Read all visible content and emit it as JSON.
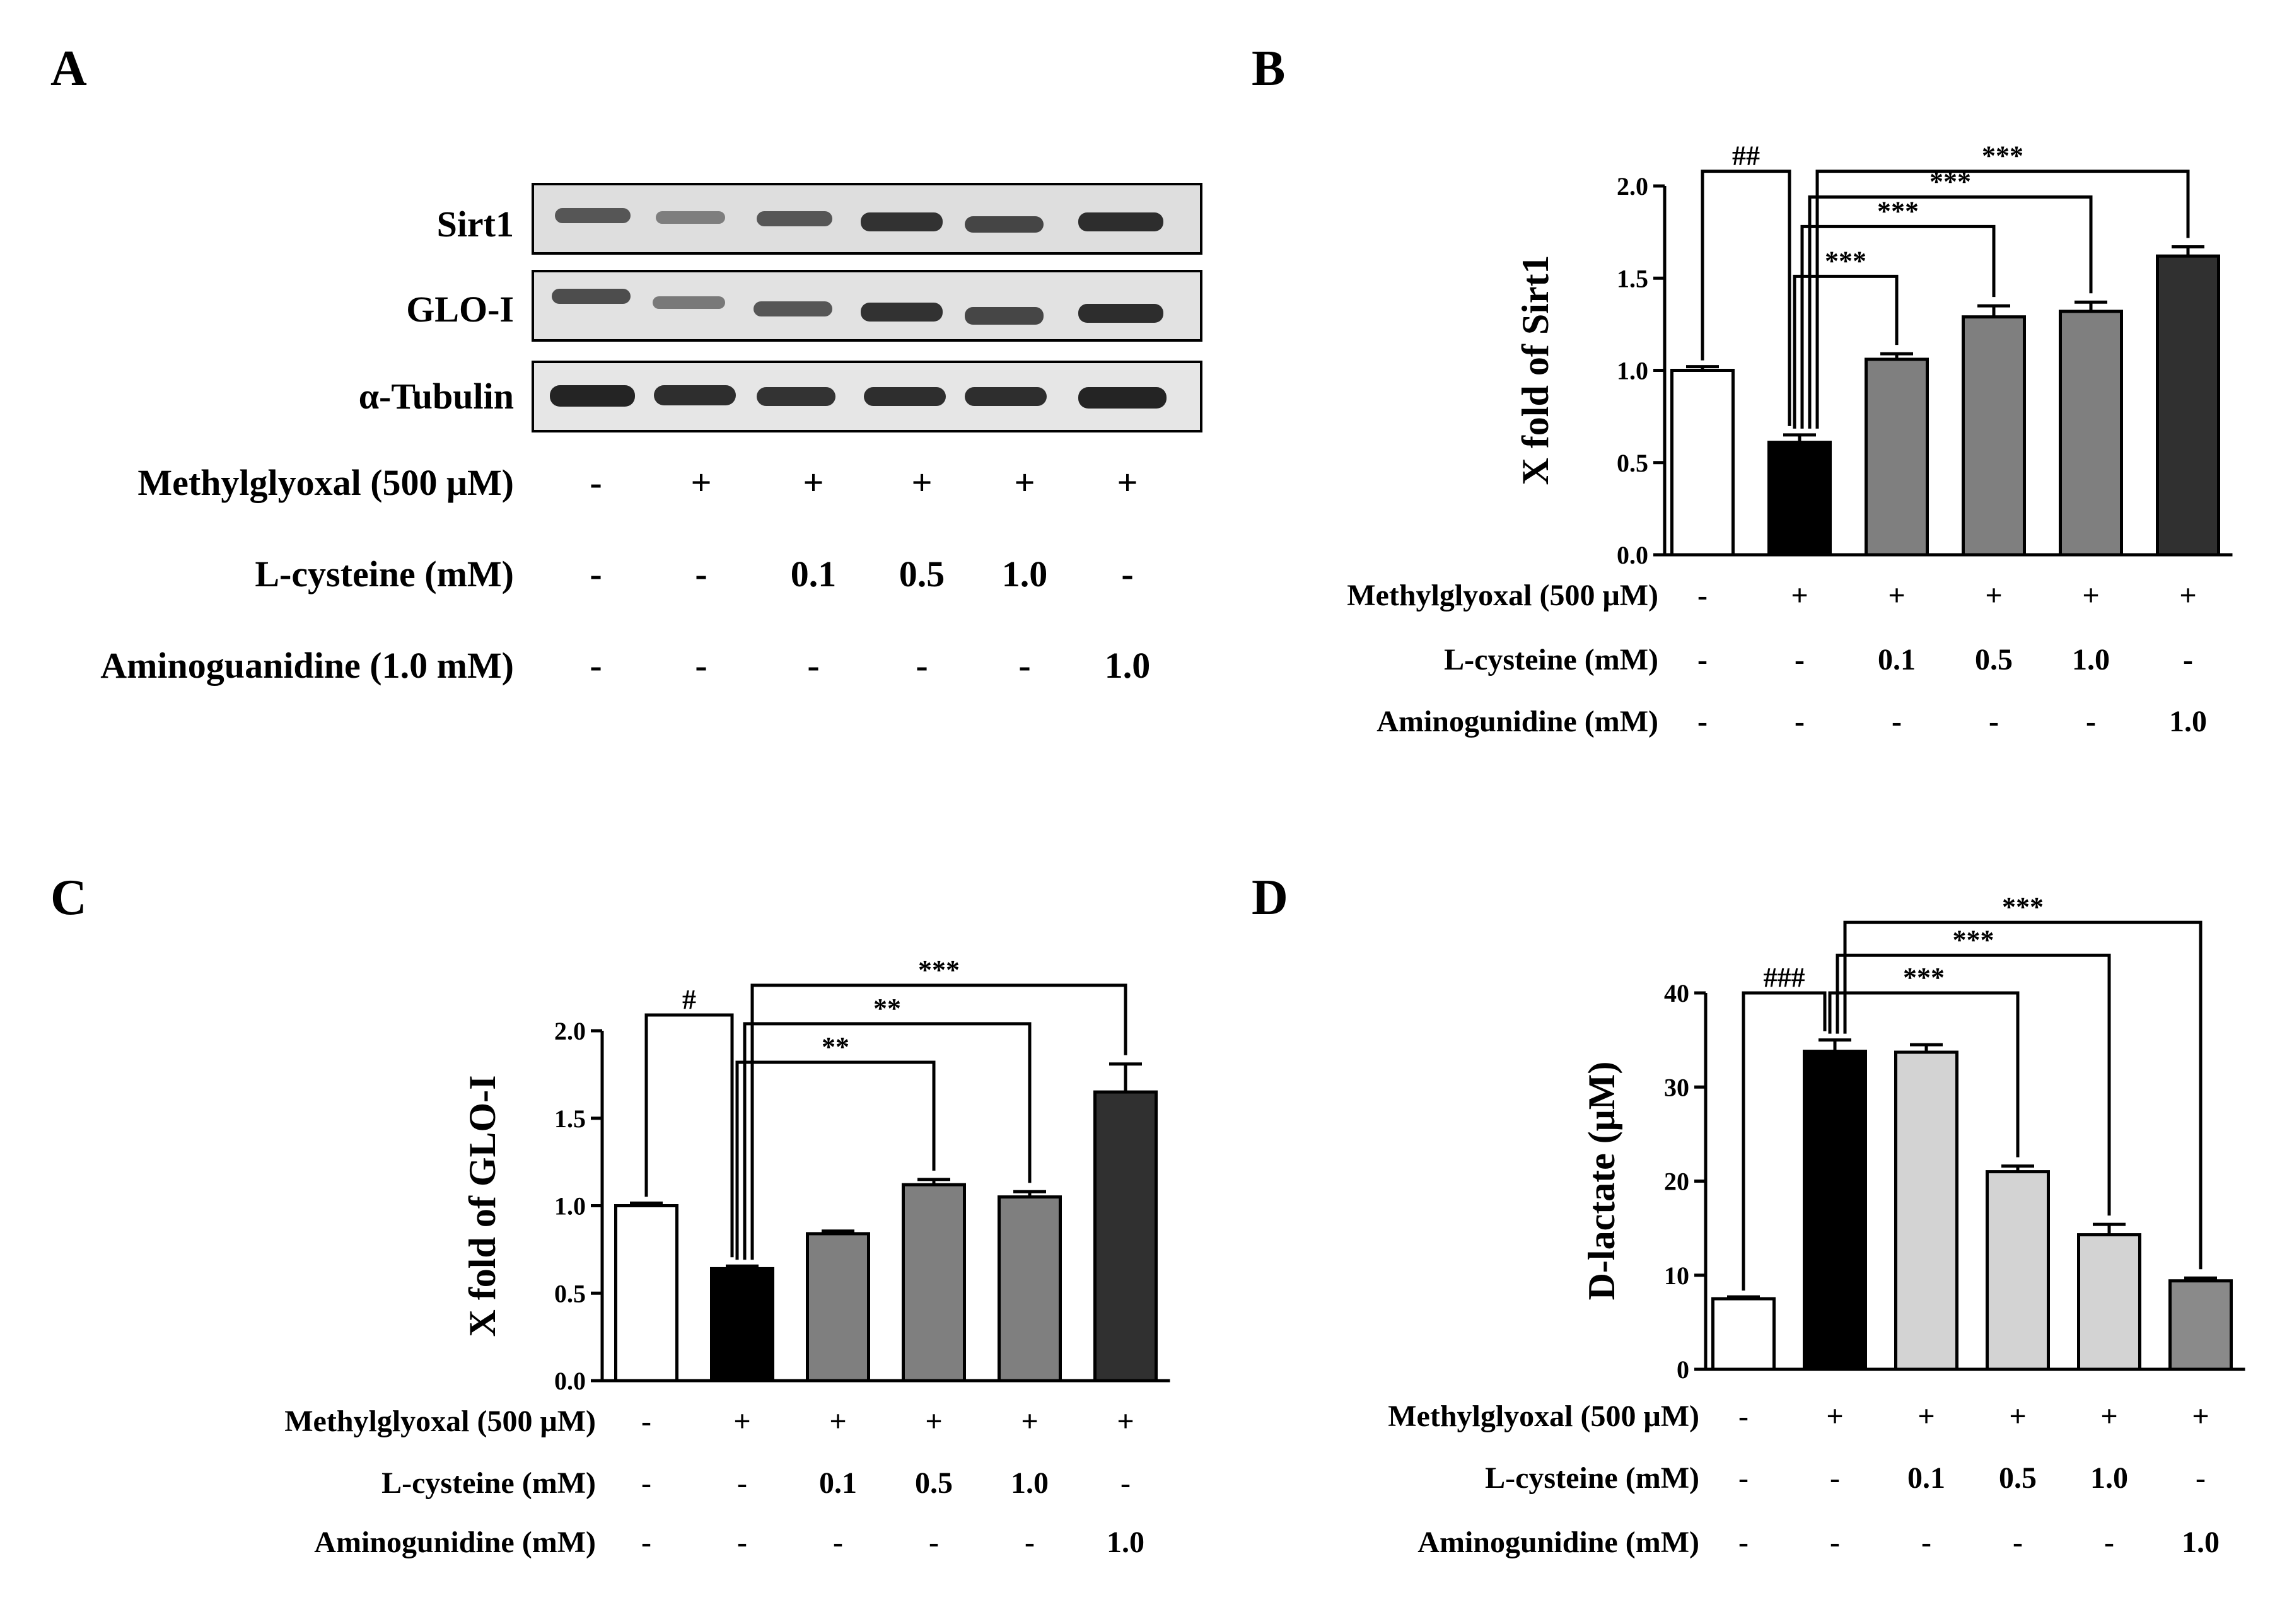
{
  "panel_labels": [
    "A",
    "B",
    "C",
    "D"
  ],
  "blot": {
    "bands": [
      "Sirt1",
      "GLO-I",
      "α-Tubulin"
    ],
    "rows": [
      {
        "label": "Methylglyoxal (500 μM)",
        "values": [
          "-",
          "+",
          "+",
          "+",
          "+",
          "+"
        ]
      },
      {
        "label": "L-cysteine (mM)",
        "values": [
          "-",
          "-",
          "0.1",
          "0.5",
          "1.0",
          "-"
        ]
      },
      {
        "label": "Aminoguanidine (1.0 mM)",
        "values": [
          "-",
          "-",
          "-",
          "-",
          "-",
          "1.0"
        ]
      }
    ]
  },
  "colors": {
    "white": "#ffffff",
    "black": "#000000",
    "gray": "#7f7f7f",
    "dark": "#303030",
    "light": "#d3d3d3",
    "mid": "#8a8a8a"
  },
  "chart_data": [
    {
      "panel": "B",
      "type": "bar",
      "ylabel": "X fold of Sirt1",
      "ylim": [
        0,
        2.0
      ],
      "yticks": [
        0.0,
        0.5,
        1.0,
        1.5,
        2.0
      ],
      "tick_format": 1,
      "values": [
        1.0,
        0.61,
        1.06,
        1.29,
        1.32,
        1.62
      ],
      "errors": [
        0.02,
        0.04,
        0.03,
        0.06,
        0.05,
        0.05
      ],
      "fills": [
        "white",
        "black",
        "gray",
        "gray",
        "gray",
        "dark"
      ],
      "significance": [
        {
          "from": 0,
          "to": 1,
          "label": "##",
          "top": 2.08
        },
        {
          "from": 1,
          "to": 2,
          "label": "***",
          "top": 1.51
        },
        {
          "from": 1,
          "to": 3,
          "label": "***",
          "top": 1.78
        },
        {
          "from": 1,
          "to": 4,
          "label": "***",
          "top": 1.94
        },
        {
          "from": 1,
          "to": 5,
          "label": "***",
          "top": 2.08
        }
      ],
      "conditions": [
        {
          "label": "Methylglyoxal (500 μM)",
          "values": [
            "-",
            "+",
            "+",
            "+",
            "+",
            "+"
          ]
        },
        {
          "label": "L-cysteine (mM)",
          "values": [
            "-",
            "-",
            "0.1",
            "0.5",
            "1.0",
            "-"
          ]
        },
        {
          "label": "Aminogunidine (mM)",
          "values": [
            "-",
            "-",
            "-",
            "-",
            "-",
            "1.0"
          ]
        }
      ]
    },
    {
      "panel": "C",
      "type": "bar",
      "ylabel": "X fold of GLO-I",
      "ylim": [
        0,
        2.0
      ],
      "yticks": [
        0.0,
        0.5,
        1.0,
        1.5,
        2.0
      ],
      "tick_format": 1,
      "values": [
        1.0,
        0.64,
        0.84,
        1.12,
        1.05,
        1.65
      ],
      "errors": [
        0.015,
        0.015,
        0.015,
        0.03,
        0.03,
        0.16
      ],
      "fills": [
        "white",
        "black",
        "gray",
        "gray",
        "gray",
        "dark"
      ],
      "significance": [
        {
          "from": 0,
          "to": 1,
          "label": "#",
          "top": 2.09
        },
        {
          "from": 1,
          "to": 3,
          "label": "**",
          "top": 1.82
        },
        {
          "from": 1,
          "to": 4,
          "label": "**",
          "top": 2.04
        },
        {
          "from": 1,
          "to": 5,
          "label": "***",
          "top": 2.26
        }
      ],
      "conditions": [
        {
          "label": "Methylglyoxal (500 μM)",
          "values": [
            "-",
            "+",
            "+",
            "+",
            "+",
            "+"
          ]
        },
        {
          "label": "L-cysteine (mM)",
          "values": [
            "-",
            "-",
            "0.1",
            "0.5",
            "1.0",
            "-"
          ]
        },
        {
          "label": "Aminogunidine (mM)",
          "values": [
            "-",
            "-",
            "-",
            "-",
            "-",
            "1.0"
          ]
        }
      ]
    },
    {
      "panel": "D",
      "type": "bar",
      "ylabel": "D-lactate (μM)",
      "ylim": [
        0,
        40
      ],
      "yticks": [
        0,
        10,
        20,
        30,
        40
      ],
      "tick_format": 0,
      "values": [
        7.5,
        33.8,
        33.7,
        21.0,
        14.3,
        9.4
      ],
      "errors": [
        0.2,
        1.2,
        0.8,
        0.6,
        1.1,
        0.3
      ],
      "fills": [
        "white",
        "black",
        "light",
        "light",
        "light",
        "mid"
      ],
      "significance": [
        {
          "from": 0,
          "to": 1,
          "label": "###",
          "top": 40.0
        },
        {
          "from": 1,
          "to": 3,
          "label": "***",
          "top": 40.0
        },
        {
          "from": 1,
          "to": 4,
          "label": "***",
          "top": 44.0
        },
        {
          "from": 1,
          "to": 5,
          "label": "***",
          "top": 47.5
        }
      ],
      "conditions": [
        {
          "label": "Methylglyoxal (500 μM)",
          "values": [
            "-",
            "+",
            "+",
            "+",
            "+",
            "+"
          ]
        },
        {
          "label": "L-cysteine (mM)",
          "values": [
            "-",
            "-",
            "0.1",
            "0.5",
            "1.0",
            "-"
          ]
        },
        {
          "label": "Aminogunidine (mM)",
          "values": [
            "-",
            "-",
            "-",
            "-",
            "-",
            "1.0"
          ]
        }
      ]
    }
  ]
}
